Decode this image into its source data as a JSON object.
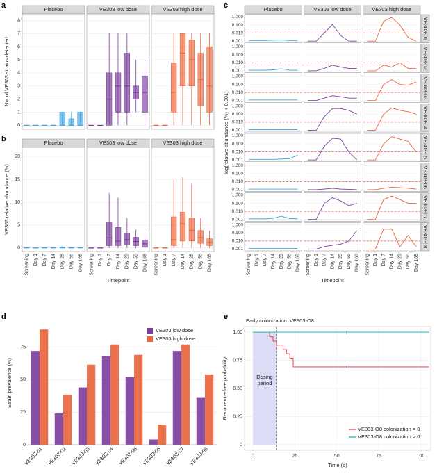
{
  "chart_data": [
    {
      "panel": "a",
      "type": "box",
      "ylabel": "No. of VE303 strains detected",
      "categories": [
        "Screening",
        "Day 1",
        "Day 7",
        "Day 14",
        "Day 28",
        "Day 56",
        "Day 168"
      ],
      "ylim": [
        -0.3,
        8.5
      ],
      "yticks": [
        0,
        1,
        2,
        3,
        4,
        5,
        6,
        7,
        8
      ],
      "grid": true,
      "facets": [
        {
          "name": "Placebo",
          "color": "#3ea6e6",
          "median": [
            0,
            0,
            0,
            0,
            0,
            0,
            0
          ],
          "q1": [
            0,
            0,
            0,
            0,
            0,
            0,
            0
          ],
          "q3": [
            0,
            0,
            0,
            0,
            1,
            0.5,
            1
          ],
          "whisker_low": [
            0,
            0,
            0,
            0,
            0,
            0,
            0
          ],
          "whisker_high": [
            0,
            0,
            0,
            0,
            1,
            1,
            1
          ]
        },
        {
          "name": "VE303 low dose",
          "color": "#7b3b9c",
          "median": [
            0,
            0,
            2,
            3,
            3,
            2.5,
            2.5
          ],
          "q1": [
            0,
            0,
            0,
            1,
            1,
            2,
            1
          ],
          "q3": [
            0,
            0,
            4,
            4,
            5.5,
            3,
            3.75
          ],
          "whisker_low": [
            0,
            0,
            0,
            0,
            0,
            1,
            0
          ],
          "whisker_high": [
            0,
            0,
            7,
            7,
            7,
            5,
            5
          ]
        },
        {
          "name": "VE303 high dose",
          "color": "#e8643a",
          "median": [
            0,
            0,
            2.5,
            5.5,
            5,
            3.5,
            3
          ],
          "q1": [
            0,
            0,
            1,
            3,
            3,
            1.5,
            1
          ],
          "q3": [
            0,
            0,
            4.75,
            7,
            6.5,
            5.5,
            6
          ],
          "whisker_low": [
            0,
            0,
            0,
            0,
            0,
            0,
            0
          ],
          "whisker_high": [
            0,
            0,
            7,
            7,
            7,
            7,
            7
          ]
        }
      ]
    },
    {
      "panel": "b",
      "type": "box",
      "ylabel": "VE303 relative abundance (%)",
      "xlabel": "Timepoint",
      "categories": [
        "Screening",
        "Day 1",
        "Day 7",
        "Day 14",
        "Day 28",
        "Day 56",
        "Day 168"
      ],
      "ylim": [
        -0.8,
        22
      ],
      "yticks": [
        0,
        5,
        10,
        15,
        20
      ],
      "grid": true,
      "facets": [
        {
          "name": "Placebo",
          "color": "#3ea6e6",
          "median": [
            0,
            0,
            0,
            0,
            0,
            0,
            0
          ],
          "q1": [
            0,
            0,
            0,
            0,
            0,
            0,
            0
          ],
          "q3": [
            0.1,
            0,
            0.1,
            0.1,
            0.2,
            0.1,
            0.1
          ],
          "whisker_low": [
            0,
            0,
            0,
            0,
            0,
            0,
            0
          ],
          "whisker_high": [
            0.2,
            0.1,
            0.2,
            0.2,
            0.4,
            0.2,
            0.2
          ]
        },
        {
          "name": "VE303 low dose",
          "color": "#7b3b9c",
          "median": [
            0,
            0,
            2.2,
            1.5,
            1.8,
            1.4,
            0.9
          ],
          "q1": [
            0,
            0,
            0.5,
            0.5,
            0.8,
            0.5,
            0.2
          ],
          "q3": [
            0,
            0,
            5.5,
            4.5,
            3.2,
            2.3,
            1.7
          ],
          "whisker_low": [
            0,
            0,
            0,
            0,
            0,
            0,
            0
          ],
          "whisker_high": [
            0,
            0,
            12,
            11,
            6.5,
            4,
            3.5
          ]
        },
        {
          "name": "VE303 high dose",
          "color": "#e8643a",
          "median": [
            0,
            0,
            1.8,
            5.3,
            3.8,
            2.2,
            1.2
          ],
          "q1": [
            0,
            0,
            0.5,
            1.5,
            1.5,
            1,
            0.5
          ],
          "q3": [
            0,
            0,
            6.8,
            7.8,
            6.5,
            3.8,
            2
          ],
          "whisker_low": [
            0,
            0,
            0,
            0,
            0,
            0,
            0
          ],
          "whisker_high": [
            0,
            0,
            15,
            15.5,
            14,
            6.5,
            3.7
          ]
        }
      ]
    },
    {
      "panel": "c",
      "type": "facet-line",
      "ylabel": "log(relative abundance (%) + 0.001)",
      "xlabel": "Timepoint",
      "categories": [
        "Screening",
        "Day 1",
        "Day 7",
        "Day 14",
        "Day 28",
        "Day 56",
        "Day 168"
      ],
      "log": true,
      "ylim": [
        0.0006,
        2
      ],
      "yticks": [
        0.001,
        {
          "value": 0.01,
          "label": "0.010"
        },
        {
          "value": 0.1,
          "label": "0.100"
        },
        {
          "value": 1,
          "label": "1.000"
        }
      ],
      "threshold": 0.01,
      "threshold_color": "#e8504a",
      "groups": [
        "Placebo",
        "VE303 low dose",
        "VE303 high dose"
      ],
      "colors": [
        "#3ea6e6",
        "#7b3b9c",
        "#e8643a"
      ],
      "panels": [
        {
          "strain": "VE303-01",
          "values": [
            [
              0.0012,
              0.0012,
              0.0012,
              0.0013,
              0.0014,
              0.0012,
              0.0012
            ],
            [
              0.001,
              0.001,
              0.01,
              0.12,
              0.005,
              0.001,
              0.001
            ],
            [
              0.001,
              0.001,
              0.3,
              0.9,
              0.1,
              0.003,
              0.001
            ]
          ]
        },
        {
          "strain": "VE303-02",
          "values": [
            [
              0.0012,
              0.0012,
              0.0012,
              0.0013,
              0.0018,
              0.0012,
              0.0012
            ],
            [
              0.001,
              0.001,
              0.002,
              0.005,
              0.003,
              0.002,
              0.002
            ],
            [
              0.001,
              0.001,
              0.005,
              0.003,
              0.01,
              0.002,
              0.002
            ]
          ]
        },
        {
          "strain": "VE303-03",
          "values": [
            [
              0.0012,
              0.0012,
              0.0012,
              0.0012,
              0.0012,
              0.0012,
              0.0012
            ],
            [
              0.001,
              0.001,
              0.002,
              0.004,
              0.003,
              0.002,
              0.002
            ],
            [
              0.001,
              0.001,
              0.1,
              0.4,
              0.1,
              0.08,
              0.2
            ]
          ]
        },
        {
          "strain": "VE303-04",
          "values": [
            [
              0.0012,
              0.0012,
              0.0012,
              0.0012,
              0.0012,
              0.0012,
              0.0012
            ],
            [
              0.001,
              0.001,
              0.05,
              0.5,
              0.5,
              0.3,
              0.1
            ],
            [
              0.001,
              0.001,
              0.1,
              0.6,
              0.3,
              0.2,
              0.1
            ]
          ]
        },
        {
          "strain": "VE303-05",
          "values": [
            [
              0.0012,
              0.0012,
              0.0012,
              0.0012,
              0.0013,
              0.0015,
              0.004
            ],
            [
              0.001,
              0.001,
              0.05,
              0.5,
              0.4,
              0.01,
              0.001
            ],
            [
              0.001,
              0.001,
              0.1,
              0.8,
              0.4,
              0.2,
              0.01
            ]
          ]
        },
        {
          "strain": "VE303-06",
          "values": [
            [
              0.0012,
              0.0012,
              0.0012,
              0.0012,
              0.0012,
              0.0012,
              0.0012
            ],
            [
              0.001,
              0.001,
              0.0012,
              0.0015,
              0.0012,
              0.0011,
              0.001
            ],
            [
              0.001,
              0.001,
              0.0015,
              0.002,
              0.0018,
              0.0015,
              0.0012
            ]
          ]
        },
        {
          "strain": "VE303-07",
          "values": [
            [
              0.0012,
              0.0012,
              0.0012,
              0.0014,
              0.0025,
              0.0013,
              0.0012
            ],
            [
              0.001,
              0.001,
              0.1,
              0.5,
              0.2,
              0.05,
              0.1
            ],
            [
              0.001,
              0.001,
              0.3,
              0.8,
              0.3,
              0.1,
              0.1
            ]
          ]
        },
        {
          "strain": "VE303-08",
          "values": [
            [
              0.0012,
              0.0012,
              0.0012,
              0.0012,
              0.0012,
              0.0012,
              0.0012
            ],
            [
              0.001,
              0.001,
              0.002,
              0.003,
              0.004,
              0.01,
              0.2
            ],
            [
              0.001,
              0.001,
              0.3,
              0.3,
              0.002,
              0.05,
              0.002
            ]
          ]
        }
      ]
    },
    {
      "panel": "d",
      "type": "bar",
      "ylabel": "Strain prevalence (%)",
      "categories": [
        "VE303-01",
        "VE303-02",
        "VE303-03",
        "VE303-04",
        "VE303-05",
        "VE303-06",
        "VE303-07",
        "VE303-08"
      ],
      "ylim": [
        0,
        95
      ],
      "yticks": [
        0,
        25,
        50,
        75
      ],
      "grid": true,
      "legend": "top-right",
      "series": [
        {
          "name": "VE303 low dose",
          "color": "#7b3b9c",
          "values": [
            72,
            24,
            44,
            68,
            52,
            4,
            72,
            36
          ]
        },
        {
          "name": "VE303 high dose",
          "color": "#e8643a",
          "values": [
            88.5,
            38.5,
            61.5,
            77,
            69,
            15.4,
            77,
            54
          ]
        }
      ]
    },
    {
      "panel": "e",
      "type": "step",
      "title": "Early colonization: VE303-O8",
      "ylabel": "Recurrence-free probability",
      "xlabel": "Time (d)",
      "xlim": [
        -5,
        106
      ],
      "xticks": [
        0,
        25,
        50,
        75,
        100
      ],
      "ylim": [
        -0.05,
        1.05
      ],
      "yticks": [
        0,
        {
          "value": 0.25,
          "label": "0.25"
        },
        {
          "value": 0.5,
          "label": "0.50"
        },
        0.75,
        {
          "value": 1,
          "label": "1.00"
        }
      ],
      "grid": true,
      "legend": "bottom-right",
      "dosing_end": 14,
      "dosing_label": "Dosing\nperiod",
      "dosing_color": "#dcdcf7",
      "series": [
        {
          "name": "VE303-O8 colonization = 0",
          "color": "#e8585a",
          "x": [
            0,
            10,
            12,
            14,
            18,
            20,
            22,
            24,
            105
          ],
          "y": [
            1,
            0.96,
            0.92,
            0.885,
            0.846,
            0.808,
            0.769,
            0.692,
            0.692
          ],
          "censored": [
            56
          ]
        },
        {
          "name": "VE303-O8 colonization > 0",
          "color": "#2ec4c4",
          "x": [
            0,
            105
          ],
          "y": [
            1,
            1
          ],
          "censored": [
            56
          ]
        }
      ]
    }
  ]
}
